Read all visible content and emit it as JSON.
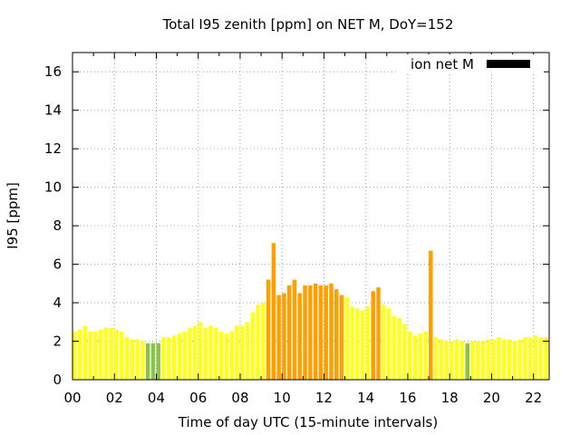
{
  "chart_data": {
    "type": "bar",
    "title": "Total I95 zenith [ppm] on NET M, DoY=152",
    "xlabel": "Time of day UTC (15-minute intervals)",
    "ylabel": "I95 [ppm]",
    "xlim": [
      0,
      22.75
    ],
    "ylim": [
      0,
      17
    ],
    "x_ticks": [
      "00",
      "02",
      "04",
      "06",
      "08",
      "10",
      "12",
      "14",
      "16",
      "18",
      "20",
      "22"
    ],
    "x_tick_values": [
      0,
      2,
      4,
      6,
      8,
      10,
      12,
      14,
      16,
      18,
      20,
      22
    ],
    "y_ticks": [
      0,
      2,
      4,
      6,
      8,
      10,
      12,
      14,
      16
    ],
    "grid": true,
    "legend_position": "top-right",
    "series": [
      {
        "name": "ion net M",
        "color": "#000000",
        "interval_hours": 0.25,
        "values": [
          2.5,
          2.6,
          2.8,
          2.5,
          2.5,
          2.6,
          2.7,
          2.7,
          2.6,
          2.5,
          2.2,
          2.1,
          2.1,
          2.0,
          1.9,
          1.9,
          1.9,
          2.2,
          2.2,
          2.3,
          2.4,
          2.5,
          2.7,
          2.8,
          3.0,
          2.7,
          2.8,
          2.7,
          2.5,
          2.4,
          2.5,
          2.8,
          2.8,
          3.0,
          3.5,
          3.9,
          4.0,
          5.2,
          7.1,
          4.4,
          4.5,
          4.9,
          5.2,
          4.5,
          4.9,
          4.9,
          5.0,
          4.9,
          4.9,
          5.0,
          4.7,
          4.4,
          4.3,
          3.8,
          3.7,
          3.6,
          3.8,
          4.6,
          4.8,
          3.9,
          3.7,
          3.3,
          3.2,
          2.9,
          2.5,
          2.3,
          2.4,
          2.5,
          6.7,
          2.2,
          2.1,
          2.0,
          2.0,
          2.1,
          2.0,
          1.9,
          2.0,
          2.0,
          2.0,
          2.1,
          2.1,
          2.2,
          2.1,
          2.1,
          2.0,
          2.1,
          2.2,
          2.2,
          2.3,
          2.2,
          2.2
        ]
      }
    ],
    "level_colors": {
      "low": "#8bc34a",
      "normal": "#ffff1e",
      "moderate": "#ff9f00"
    },
    "level_thresholds": {
      "low_below": 2.0,
      "moderate_above": 4.3
    }
  }
}
